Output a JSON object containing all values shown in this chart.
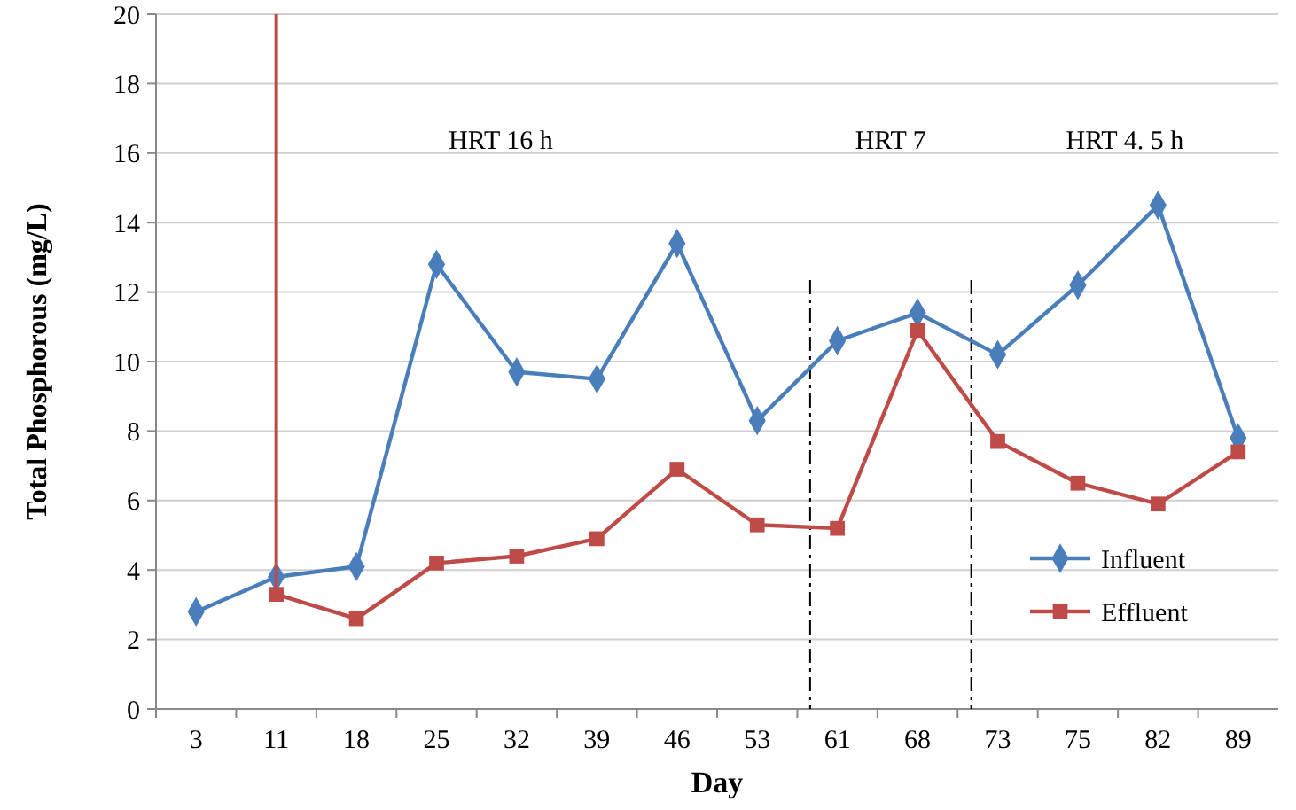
{
  "chart_data": {
    "type": "line",
    "xlabel": "Day",
    "ylabel": "Total Phosphorous  (mg/L)",
    "categories": [
      "3",
      "11",
      "18",
      "25",
      "32",
      "39",
      "46",
      "53",
      "61",
      "68",
      "73",
      "75",
      "82",
      "89"
    ],
    "series": [
      {
        "name": "Influent",
        "color": "#4a7ebb",
        "marker": "diamond",
        "values": [
          2.8,
          3.8,
          4.1,
          12.8,
          9.7,
          9.5,
          13.4,
          8.3,
          10.6,
          11.4,
          10.2,
          12.2,
          14.5,
          7.8
        ]
      },
      {
        "name": "Effluent",
        "color": "#be4b48",
        "marker": "square",
        "values": [
          null,
          3.3,
          2.6,
          4.2,
          4.4,
          4.9,
          6.9,
          5.3,
          5.2,
          10.9,
          7.7,
          6.5,
          5.9,
          7.4
        ],
        "errors": [
          null,
          [
            3.3,
            20
          ],
          null,
          null,
          null,
          null,
          null,
          null,
          null,
          null,
          null,
          null,
          null,
          null
        ]
      }
    ],
    "ylim": [
      0,
      20
    ],
    "yticks": [
      0,
      2,
      4,
      6,
      8,
      10,
      12,
      14,
      16,
      18,
      20
    ],
    "grid": "y",
    "legend": "bottom right",
    "annotations": [
      "HRT 16 h",
      "HRT 7",
      "HRT 4. 5 h"
    ]
  }
}
